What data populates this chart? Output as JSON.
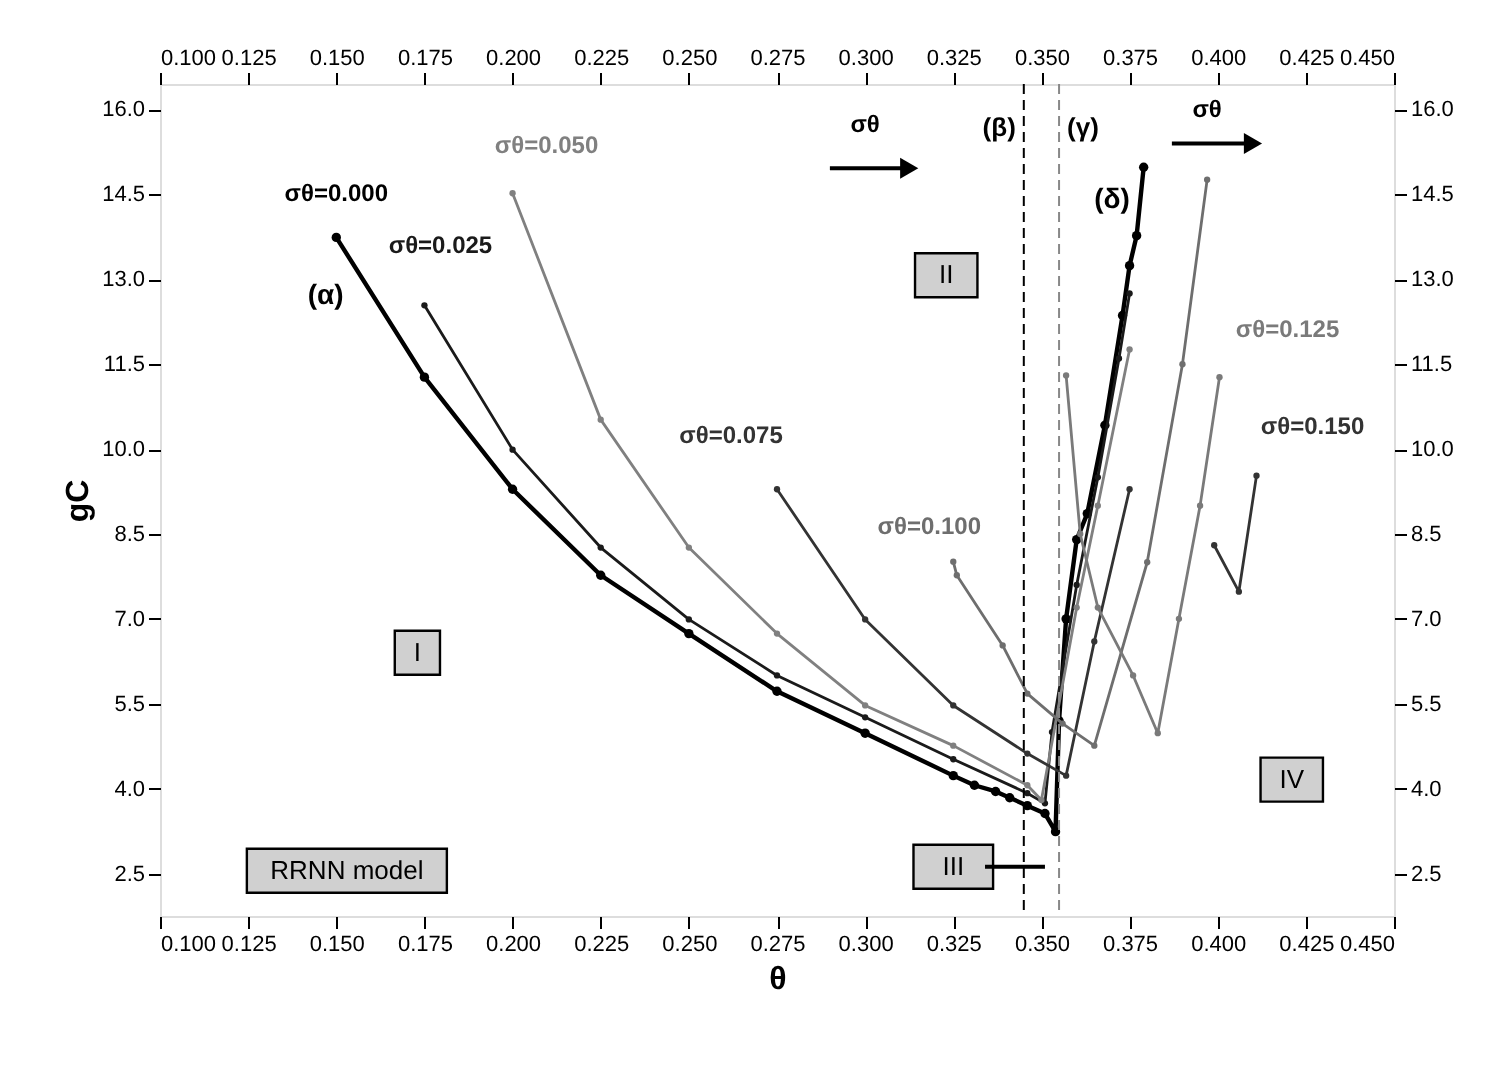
{
  "chart_data": {
    "type": "line",
    "xlabel": "θ",
    "ylabel": "gC",
    "marker": "circle",
    "line_style": "solid",
    "xlim": [
      0.1,
      0.45
    ],
    "ylim": [
      1.75,
      16.45
    ],
    "x2lim": [
      0.1,
      0.45
    ],
    "y2lim": [
      1.75,
      16.45
    ],
    "xticks": [
      {
        "value": 0.1,
        "label": "0.100"
      },
      {
        "value": 0.125,
        "label": "0.125"
      },
      {
        "value": 0.15,
        "label": "0.150"
      },
      {
        "value": 0.175,
        "label": "0.175"
      },
      {
        "value": 0.2,
        "label": "0.200"
      },
      {
        "value": 0.225,
        "label": "0.225"
      },
      {
        "value": 0.25,
        "label": "0.250"
      },
      {
        "value": 0.275,
        "label": "0.275"
      },
      {
        "value": 0.3,
        "label": "0.300"
      },
      {
        "value": 0.325,
        "label": "0.325"
      },
      {
        "value": 0.35,
        "label": "0.350"
      },
      {
        "value": 0.375,
        "label": "0.375"
      },
      {
        "value": 0.4,
        "label": "0.400"
      },
      {
        "value": 0.425,
        "label": "0.425"
      },
      {
        "value": 0.45,
        "label": "0.450"
      }
    ],
    "x2ticks": [
      {
        "value": 0.1,
        "label": "0.100"
      },
      {
        "value": 0.125,
        "label": "0.125"
      },
      {
        "value": 0.15,
        "label": "0.150"
      },
      {
        "value": 0.175,
        "label": "0.175"
      },
      {
        "value": 0.2,
        "label": "0.200"
      },
      {
        "value": 0.225,
        "label": "0.225"
      },
      {
        "value": 0.25,
        "label": "0.250"
      },
      {
        "value": 0.275,
        "label": "0.275"
      },
      {
        "value": 0.3,
        "label": "0.300"
      },
      {
        "value": 0.325,
        "label": "0.325"
      },
      {
        "value": 0.35,
        "label": "0.350"
      },
      {
        "value": 0.375,
        "label": "0.375"
      },
      {
        "value": 0.4,
        "label": "0.400"
      },
      {
        "value": 0.425,
        "label": "0.425"
      },
      {
        "value": 0.45,
        "label": "0.450"
      }
    ],
    "yticks": [
      {
        "value": 2.5,
        "label": "2.5"
      },
      {
        "value": 4,
        "label": "4.0"
      },
      {
        "value": 5.5,
        "label": "5.5"
      },
      {
        "value": 7,
        "label": "7.0"
      },
      {
        "value": 8.5,
        "label": "8.5"
      },
      {
        "value": 10,
        "label": "10.0"
      },
      {
        "value": 11.5,
        "label": "11.5"
      },
      {
        "value": 13,
        "label": "13.0"
      },
      {
        "value": 14.5,
        "label": "14.5"
      },
      {
        "value": 16,
        "label": "16.0"
      }
    ],
    "y2ticks": [
      {
        "value": 2.5,
        "label": "2.5"
      },
      {
        "value": 4,
        "label": "4.0"
      },
      {
        "value": 5.5,
        "label": "5.5"
      },
      {
        "value": 7,
        "label": "7.0"
      },
      {
        "value": 8.5,
        "label": "8.5"
      },
      {
        "value": 10,
        "label": "10.0"
      },
      {
        "value": 11.5,
        "label": "11.5"
      },
      {
        "value": 13,
        "label": "13.0"
      },
      {
        "value": 14.5,
        "label": "14.5"
      },
      {
        "value": 16,
        "label": "16.0"
      }
    ],
    "series": [
      {
        "name": "σθ=0.000",
        "color": "#000000",
        "x": [
          0.15,
          0.175,
          0.2,
          0.225,
          0.25,
          0.275,
          0.3,
          0.325,
          0.331,
          0.337,
          0.341,
          0.346,
          0.351,
          0.354,
          0.355,
          0.357,
          0.36,
          0.363,
          0.368,
          0.373,
          0.375,
          0.377,
          0.379
        ],
        "values": [
          13.74,
          11.27,
          9.29,
          7.77,
          6.74,
          5.72,
          4.98,
          4.23,
          4.06,
          3.95,
          3.84,
          3.7,
          3.56,
          3.24,
          5.2,
          7.0,
          8.4,
          8.86,
          10.42,
          12.36,
          13.24,
          13.77,
          14.98
        ]
      },
      {
        "name": "σθ=0.025",
        "color": "#1a1a1a",
        "x": [
          0.175,
          0.2,
          0.225,
          0.25,
          0.275,
          0.3,
          0.325,
          0.346,
          0.351,
          0.353,
          0.36,
          0.366,
          0.372,
          0.375
        ],
        "values": [
          12.54,
          9.99,
          8.26,
          6.99,
          6.0,
          5.26,
          4.52,
          3.92,
          3.74,
          5.0,
          7.6,
          9.5,
          11.6,
          12.75
        ]
      },
      {
        "name": "σθ=0.050",
        "color": "#808080",
        "x": [
          0.2,
          0.225,
          0.25,
          0.275,
          0.3,
          0.325,
          0.346,
          0.35,
          0.36,
          0.366,
          0.375
        ],
        "values": [
          14.52,
          10.52,
          8.26,
          6.74,
          5.47,
          4.76,
          4.06,
          3.8,
          7.2,
          9.0,
          11.76
        ]
      },
      {
        "name": "σθ=0.075",
        "color": "#333333",
        "x": [
          0.275,
          0.3,
          0.325,
          0.346,
          0.357,
          0.365,
          0.375
        ],
        "values": [
          9.29,
          6.99,
          5.47,
          4.62,
          4.23,
          6.6,
          9.29
        ]
      },
      {
        "name": "σθ=0.100",
        "color": "#6e6e6e",
        "x": [
          0.325,
          0.326,
          0.339,
          0.346,
          0.356,
          0.365,
          0.38,
          0.39,
          0.397
        ],
        "values": [
          8.01,
          7.77,
          6.53,
          5.68,
          5.15,
          4.76,
          8.0,
          11.5,
          14.76
        ]
      },
      {
        "name": "σθ=0.125",
        "color": "#7a7a7a",
        "x": [
          0.357,
          0.361,
          0.366,
          0.376,
          0.383,
          0.389,
          0.395,
          0.4005
        ],
        "values": [
          11.3,
          8.5,
          7.2,
          6.0,
          4.98,
          7.0,
          9.0,
          11.27
        ]
      },
      {
        "name": "σθ=0.150",
        "color": "#333333",
        "x": [
          0.399,
          0.406,
          0.411
        ],
        "values": [
          8.3,
          7.48,
          9.53
        ]
      }
    ],
    "ref_lines": [
      {
        "axis": "x",
        "value": 0.345,
        "label": "(β)",
        "color": "#000000",
        "line_style": "dashed"
      },
      {
        "axis": "x",
        "value": 0.355,
        "label": "(γ)",
        "color": "#888888",
        "line_style": "dashed"
      }
    ],
    "annotations": [
      "(α)",
      "(δ)",
      "I",
      "II",
      "III",
      "IV",
      "RRNN model",
      "σθ",
      "σθ"
    ]
  }
}
